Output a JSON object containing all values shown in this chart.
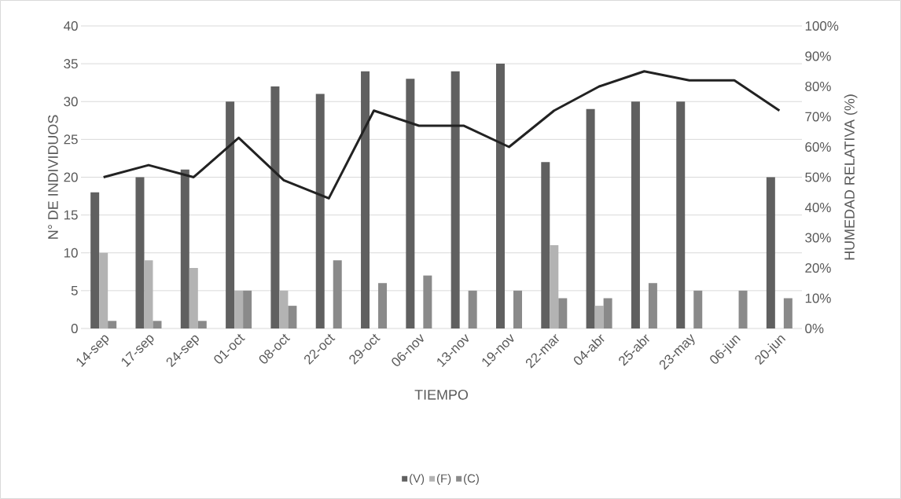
{
  "chart_data": {
    "type": "bar",
    "xlabel": "TIEMPO",
    "ylabel": "N° DE INDIVIDUOS",
    "y2label": "HUMEDAD RELATIVA (%)",
    "categories": [
      "14-sep",
      "17-sep",
      "24-sep",
      "01-oct",
      "08-oct",
      "22-oct",
      "29-oct",
      "06-nov",
      "13-nov",
      "19-nov",
      "22-mar",
      "04-abr",
      "25-abr",
      "23-may",
      "06-jun",
      "20-jun"
    ],
    "series": [
      {
        "name": "(V)",
        "color": "#606060",
        "values": [
          18,
          20,
          21,
          30,
          32,
          31,
          34,
          33,
          34,
          35,
          22,
          29,
          30,
          30,
          0,
          20
        ]
      },
      {
        "name": "(F)",
        "color": "#b3b3b3",
        "values": [
          10,
          9,
          8,
          5,
          5,
          0,
          0,
          0,
          0,
          0,
          11,
          3,
          0,
          0,
          0,
          0
        ]
      },
      {
        "name": "(C)",
        "color": "#8a8a8a",
        "values": [
          1,
          1,
          1,
          5,
          3,
          9,
          6,
          7,
          5,
          5,
          4,
          4,
          6,
          5,
          5,
          4
        ]
      },
      {
        "type": "line",
        "axis": "y2",
        "color": "#222222",
        "values": [
          50,
          54,
          50,
          63,
          49,
          43,
          72,
          67,
          67,
          60,
          72,
          80,
          85,
          82,
          82,
          72
        ]
      }
    ],
    "ylim": [
      0,
      40
    ],
    "yticks": [
      0,
      5,
      10,
      15,
      20,
      25,
      30,
      35,
      40
    ],
    "y2lim": [
      0,
      100
    ],
    "y2ticks": [
      {
        "value": 0,
        "label": "0%"
      },
      {
        "value": 10,
        "label": "10%"
      },
      {
        "value": 20,
        "label": "20%"
      },
      {
        "value": 30,
        "label": "30%"
      },
      {
        "value": 40,
        "label": "40%"
      },
      {
        "value": 50,
        "label": "50%"
      },
      {
        "value": 60,
        "label": "60%"
      },
      {
        "value": 70,
        "label": "70%"
      },
      {
        "value": 80,
        "label": "80%"
      },
      {
        "value": 90,
        "label": "90%"
      },
      {
        "value": 100,
        "label": "100%"
      }
    ],
    "grid": "y",
    "legend": "bottom"
  }
}
